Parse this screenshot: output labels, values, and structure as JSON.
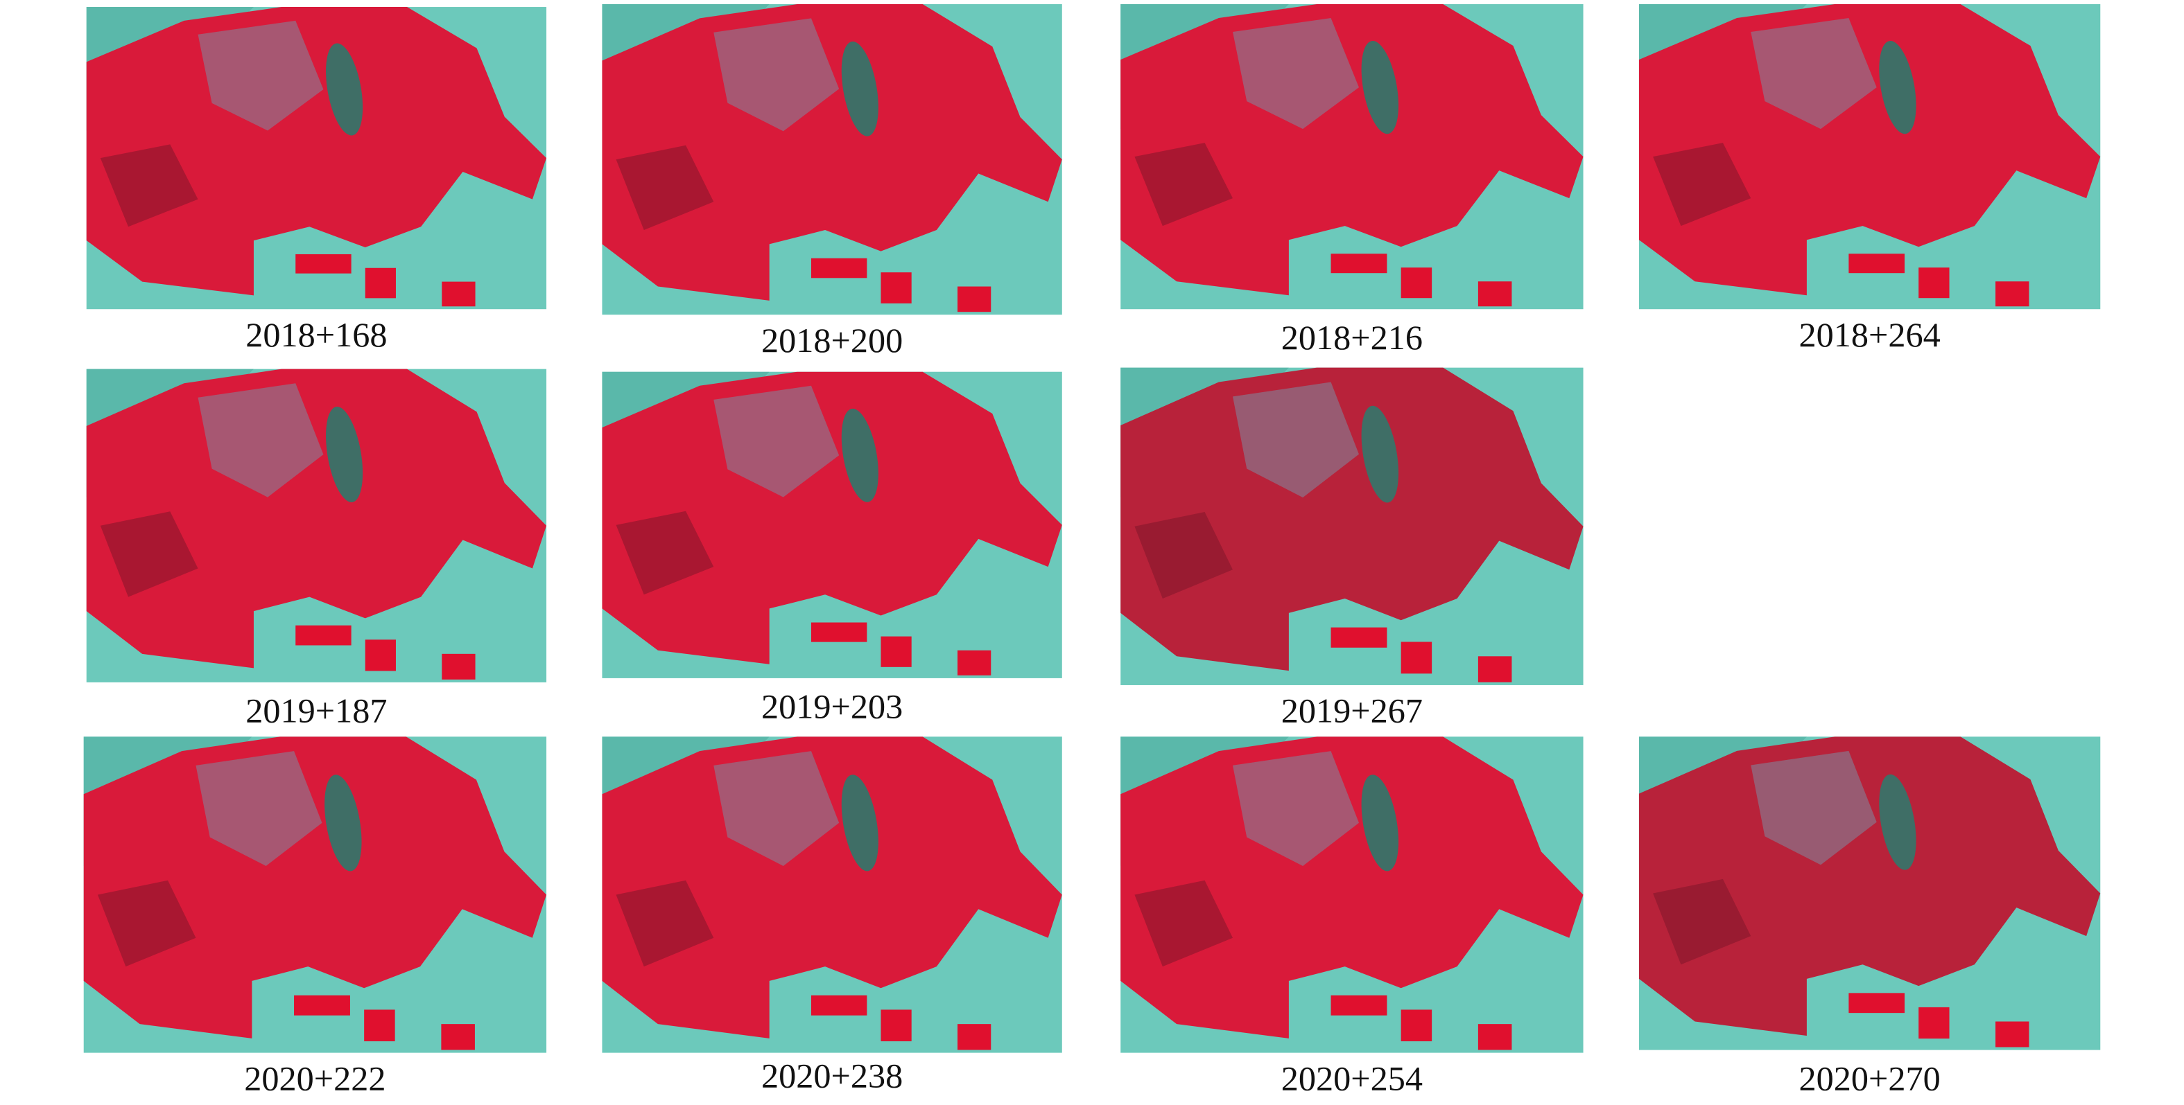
{
  "panels": [
    {
      "caption": "2018+168"
    },
    {
      "caption": "2018+200"
    },
    {
      "caption": "2018+216"
    },
    {
      "caption": "2018+264"
    },
    {
      "caption": "2019+187"
    },
    {
      "caption": "2019+203"
    },
    {
      "caption": "2019+267"
    },
    {
      "caption": "2020+222"
    },
    {
      "caption": "2020+238"
    },
    {
      "caption": "2020+254"
    },
    {
      "caption": "2020+270"
    }
  ]
}
